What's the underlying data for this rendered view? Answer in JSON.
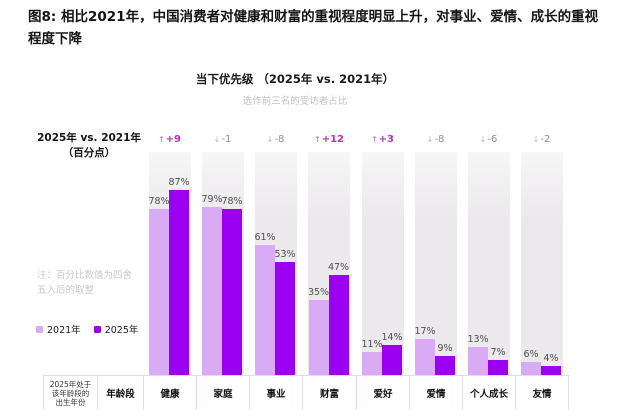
{
  "figure": {
    "title": "图8: 相比2021年，中国消费者对健康和财富的重视程度明显上升，对事业、爱情、成长的重视程度下降"
  },
  "chart_data": {
    "type": "bar",
    "title": "当下优先级 （2025年 vs. 2021年）",
    "subtitle": "选作前三名的受访者占比",
    "categories": [
      "健康",
      "家庭",
      "事业",
      "财富",
      "爱好",
      "爱情",
      "个人成长",
      "友情"
    ],
    "series": [
      {
        "name": "2021年",
        "values": [
          78,
          79,
          61,
          35,
          11,
          17,
          13,
          6
        ],
        "color": "#d9abf4"
      },
      {
        "name": "2025年",
        "values": [
          87,
          78,
          53,
          47,
          14,
          9,
          7,
          4
        ],
        "color": "#9c00f2"
      }
    ],
    "unit": "%",
    "ylim": [
      0,
      100
    ],
    "grid": false,
    "legend_position": "bottom-left",
    "deltas": [
      9,
      -1,
      -8,
      12,
      3,
      -8,
      -6,
      -2
    ],
    "annotations": {
      "delta_header_line1": "2025年 vs. 2021年",
      "delta_header_line2": "（百分点）",
      "note_line1": "注：百分比数值为四舍",
      "note_line2": "五入后的取整"
    }
  },
  "table": {
    "corner_line1": "2025年处于",
    "corner_line2": "该年龄段的",
    "corner_line3": "出生年份",
    "age_label": "年龄段"
  },
  "colors": {
    "bar_2021": "#d9abf4",
    "bar_2025": "#9c00f2",
    "delta_positive": "#b832ba",
    "delta_positive_arrow": "#d77fd8",
    "delta_negative": "#8d8d8d",
    "delta_negative_arrow": "#b5b5b5",
    "column_bg": "#ebe9eb",
    "table_border": "#e5d7f8"
  }
}
